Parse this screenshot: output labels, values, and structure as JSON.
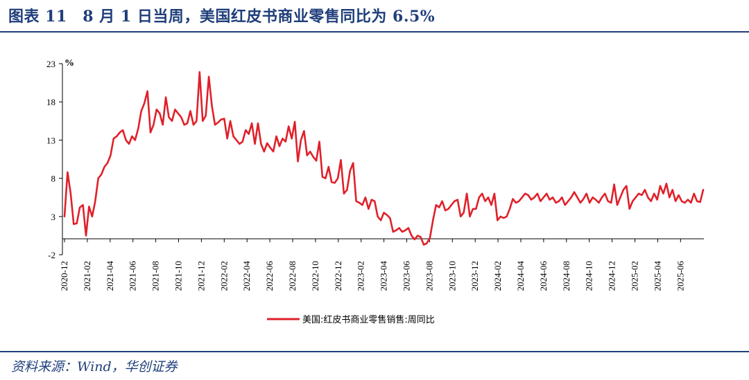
{
  "figure": {
    "title": "图表 11　8 月 1 日当周，美国红皮书商业零售同比为 6.5%",
    "source": "资料来源：Wind，华创证券"
  },
  "colors": {
    "accent": "#1f3e7a",
    "series": "#e0202a"
  },
  "chart_data": {
    "type": "line",
    "title": "",
    "xlabel": "",
    "ylabel": "%",
    "ylim": [
      -2,
      23
    ],
    "yticks": [
      -2,
      3,
      8,
      13,
      18,
      23
    ],
    "grid": false,
    "legend": "bottom-center",
    "x_start": "2020-12",
    "x_end": "2025-08",
    "xticks": [
      "2020-12",
      "2021-02",
      "2021-04",
      "2021-06",
      "2021-08",
      "2021-10",
      "2021-12",
      "2022-02",
      "2022-04",
      "2022-06",
      "2022-08",
      "2022-10",
      "2022-12",
      "2023-02",
      "2023-04",
      "2023-06",
      "2023-08",
      "2023-10",
      "2023-12",
      "2024-02",
      "2024-04",
      "2024-06",
      "2024-08",
      "2024-10",
      "2024-12",
      "2025-02",
      "2025-04",
      "2025-06"
    ],
    "series": [
      {
        "name": "美国:红皮书商业零售销售:周同比",
        "color": "#e0202a",
        "values": [
          3.0,
          8.8,
          6.0,
          2.0,
          2.1,
          4.2,
          4.5,
          0.5,
          4.3,
          3.0,
          5.0,
          8.0,
          8.5,
          9.5,
          10.0,
          11.0,
          13.2,
          13.5,
          14.0,
          14.3,
          13.0,
          12.5,
          13.5,
          13.0,
          14.5,
          16.8,
          17.8,
          19.4,
          14.0,
          15.0,
          17.0,
          16.5,
          15.0,
          18.6,
          16.0,
          15.5,
          17.0,
          16.5,
          16.0,
          15.0,
          15.2,
          16.8,
          15.0,
          15.5,
          21.9,
          15.5,
          16.2,
          21.3,
          17.5,
          15.0,
          15.3,
          15.7,
          15.8,
          13.2,
          15.5,
          13.5,
          13.0,
          12.5,
          12.8,
          14.3,
          13.8,
          15.2,
          12.5,
          15.2,
          12.5,
          11.5,
          12.6,
          12.0,
          11.5,
          13.5,
          12.2,
          13.2,
          12.8,
          14.8,
          13.2,
          15.4,
          10.2,
          13.0,
          14.2,
          11.0,
          11.5,
          10.8,
          10.3,
          12.8,
          8.2,
          8.0,
          9.5,
          7.5,
          7.4,
          8.0,
          10.4,
          6.0,
          6.5,
          9.0,
          10.0,
          5.0,
          4.8,
          4.5,
          5.5,
          4.0,
          5.2,
          5.0,
          3.0,
          2.5,
          3.5,
          3.2,
          2.8,
          1.0,
          1.2,
          1.5,
          1.0,
          1.2,
          1.5,
          0.5,
          0.0,
          0.5,
          0.3,
          -0.7,
          -0.5,
          0.2,
          2.5,
          4.5,
          4.2,
          5.0,
          3.8,
          4.0,
          4.5,
          5.0,
          5.2,
          3.0,
          3.5,
          6.0,
          3.0,
          4.0,
          4.0,
          5.5,
          6.0,
          5.0,
          5.5,
          4.5,
          6.0,
          2.5,
          3.0,
          2.8,
          3.0,
          4.0,
          5.3,
          4.8,
          5.0,
          5.5,
          6.0,
          5.8,
          5.2,
          5.5,
          6.0,
          5.0,
          5.5,
          6.0,
          5.2,
          5.5,
          4.8,
          5.0,
          5.5,
          4.5,
          5.0,
          5.5,
          6.2,
          5.5,
          4.8,
          5.3,
          6.0,
          4.8,
          5.5,
          5.2,
          4.8,
          5.5,
          6.0,
          5.0,
          4.8,
          7.2,
          4.5,
          5.5,
          6.5,
          7.0,
          4.0,
          5.0,
          5.5,
          6.0,
          5.8,
          6.5,
          5.5,
          5.0,
          6.0,
          5.2,
          7.0,
          6.0,
          7.3,
          5.5,
          6.5,
          5.0,
          5.8,
          5.0,
          4.8,
          5.2,
          4.8,
          6.0,
          5.0,
          4.9,
          6.5
        ]
      }
    ]
  }
}
